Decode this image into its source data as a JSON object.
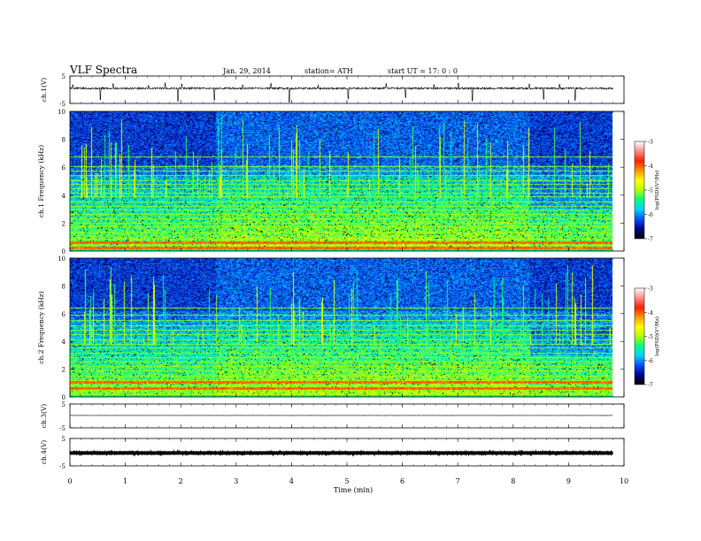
{
  "header": {
    "title": "VLF  Spectra",
    "date": "Jan. 29, 2014",
    "station": "station= ATH",
    "start": "start  UT  =    17: 0  : 0"
  },
  "chart_data": [
    {
      "type": "line",
      "panel": "ch1-waveform",
      "ylabel": "ch.1(V)",
      "ylim": [
        -5,
        5
      ],
      "yticks": [
        5,
        -5
      ],
      "baseline": 0.5,
      "noise_amp": 0.35,
      "spikes": [
        {
          "t": 0.05,
          "v": 1.8
        },
        {
          "t": 0.55,
          "v": -3.6
        },
        {
          "t": 0.78,
          "v": 2.2
        },
        {
          "t": 1.42,
          "v": 1.6
        },
        {
          "t": 1.72,
          "v": 2.5
        },
        {
          "t": 1.95,
          "v": -4.2
        },
        {
          "t": 2.02,
          "v": 2.1
        },
        {
          "t": 2.61,
          "v": -3.8
        },
        {
          "t": 3.12,
          "v": 1.7
        },
        {
          "t": 3.63,
          "v": 2.3
        },
        {
          "t": 3.96,
          "v": -4.6
        },
        {
          "t": 4.48,
          "v": 1.9
        },
        {
          "t": 5.02,
          "v": -3.3
        },
        {
          "t": 5.71,
          "v": 2.2
        },
        {
          "t": 6.06,
          "v": -2.9
        },
        {
          "t": 6.57,
          "v": 1.8
        },
        {
          "t": 7.01,
          "v": 2.4
        },
        {
          "t": 7.26,
          "v": -4.1
        },
        {
          "t": 8.29,
          "v": 2.1
        },
        {
          "t": 8.55,
          "v": -3.5
        },
        {
          "t": 8.84,
          "v": 2.0
        },
        {
          "t": 9.12,
          "v": -3.9
        }
      ]
    },
    {
      "type": "heatmap",
      "panel": "ch1-spectrogram",
      "ylabel": "ch.1  Frequency  (kHz)",
      "ylim": [
        0,
        10
      ],
      "yticks": [
        0,
        2,
        4,
        6,
        8,
        10
      ],
      "colorbar_label": "log(PSD)(V²/Hz)",
      "colorbar_range": [
        -7,
        -3
      ],
      "colorbar_ticks": [
        -3,
        -4,
        -5,
        -6,
        -7
      ],
      "segments_min": [
        0,
        2.63,
        8.3,
        9.8
      ],
      "lines_khz": [
        0.15,
        0.45,
        0.62,
        0.9,
        1.3,
        1.75,
        2.05,
        2.35,
        2.65,
        2.95,
        3.25,
        3.55,
        3.9,
        4.2,
        4.5,
        4.8,
        5.05,
        5.45,
        5.75,
        6.1,
        6.75
      ],
      "red_bands_khz": [
        0.25,
        0.62
      ],
      "texture_seed": 11
    },
    {
      "type": "heatmap",
      "panel": "ch2-spectrogram",
      "ylabel": "ch.2  Frequency  (kHz)",
      "ylim": [
        0,
        10
      ],
      "yticks": [
        0,
        2,
        4,
        6,
        8,
        10
      ],
      "colorbar_label": "log(PSD)(V²/Hz)",
      "colorbar_range": [
        -7,
        -3
      ],
      "colorbar_ticks": [
        -3,
        -4,
        -5,
        -6,
        -7
      ],
      "segments_min": [
        0,
        2.63,
        8.3,
        9.8
      ],
      "lines_khz": [
        0.2,
        0.5,
        0.85,
        1.2,
        1.55,
        1.9,
        2.2,
        2.55,
        2.85,
        3.2,
        3.55,
        3.85,
        4.15,
        4.5,
        4.85,
        5.15,
        5.55,
        5.95,
        6.45
      ],
      "red_bands_khz": [
        0.65,
        1.1
      ],
      "texture_seed": 23
    },
    {
      "type": "line",
      "panel": "ch3-waveform",
      "ylabel": "ch.3(V)",
      "ylim": [
        -5,
        5
      ],
      "yticks": [
        5,
        -5
      ],
      "baseline": 0.2,
      "noise_amp": 0.05,
      "spikes": []
    },
    {
      "type": "line",
      "panel": "ch4-waveform",
      "ylabel": "ch.4(V)",
      "ylim": [
        -5,
        5
      ],
      "yticks": [
        5,
        -5
      ],
      "baseline": -0.3,
      "noise_amp": 0.45,
      "spikes": []
    }
  ],
  "x_axis": {
    "label": "Time  (min)",
    "xlim": [
      0,
      10
    ],
    "ticks": [
      0,
      1,
      2,
      3,
      4,
      5,
      6,
      7,
      8,
      9,
      10
    ],
    "data_end": 9.8
  },
  "colormap": [
    "#000000",
    "#00008b",
    "#0050ff",
    "#00d2ff",
    "#00ff7f",
    "#b4ff00",
    "#ffff00",
    "#ff9600",
    "#ff2000",
    "#ff8c8c",
    "#ffffff"
  ]
}
